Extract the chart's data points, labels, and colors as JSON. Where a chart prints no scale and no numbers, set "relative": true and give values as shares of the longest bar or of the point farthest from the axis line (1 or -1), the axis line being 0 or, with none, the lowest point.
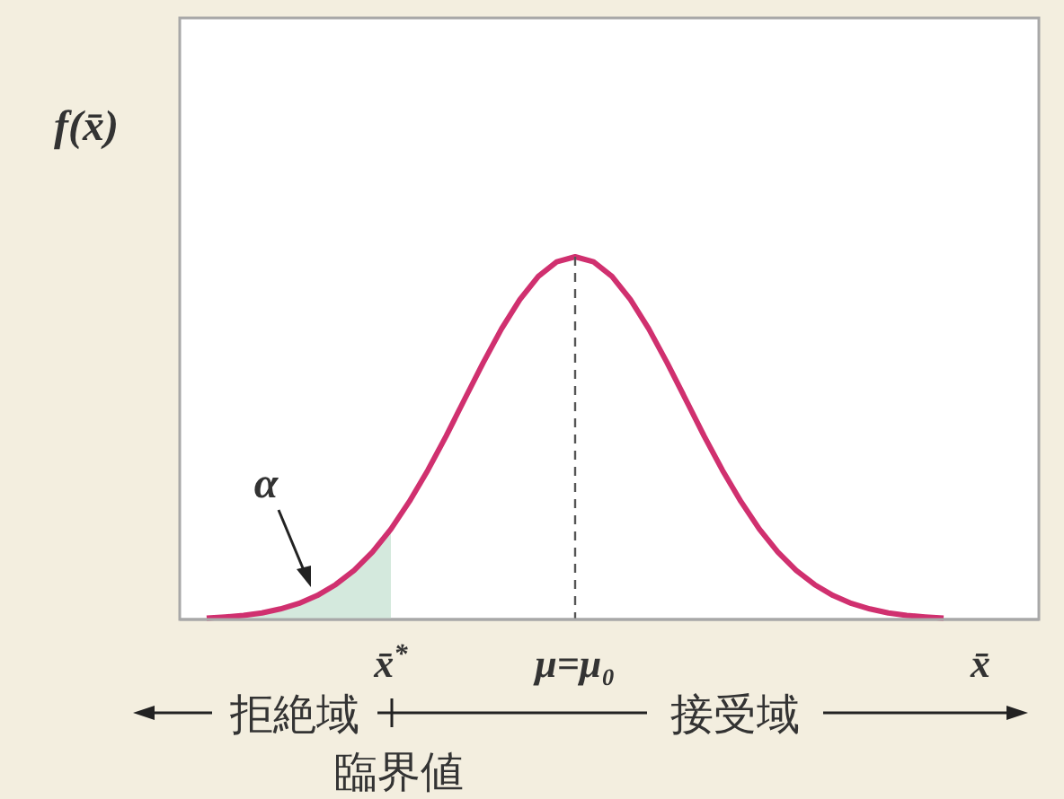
{
  "chart_data": {
    "type": "line",
    "relative": true,
    "ylabel": "f(x̄)",
    "categories": [
      null,
      null,
      null,
      null,
      null,
      null,
      null,
      null,
      null,
      null,
      "x̄$^{*}$",
      null,
      null,
      null,
      null,
      null,
      null,
      null,
      null,
      null,
      "μ=μ₀",
      null,
      null,
      null,
      null,
      null,
      null,
      null,
      null,
      null,
      null,
      null,
      null,
      null,
      null,
      null,
      null,
      null,
      null,
      null,
      null,
      null,
      "x̄"
    ],
    "series": [
      {
        "type": "area",
        "color": "#d4e9dd",
        "values": [
          0.004,
          0.007,
          0.011,
          0.018,
          0.029,
          0.044,
          0.066,
          0.096,
          0.135,
          0.186,
          0.249,
          null,
          null,
          null,
          null,
          null,
          null,
          null,
          null,
          null,
          null,
          null,
          null,
          null,
          null,
          null,
          null,
          null,
          null,
          null,
          null,
          null,
          null,
          null,
          null,
          null,
          null,
          null,
          null,
          null,
          null,
          null,
          null
        ]
      },
      {
        "type": "line",
        "color": "#d0306f",
        "values": [
          0.004,
          0.007,
          0.011,
          0.018,
          0.029,
          0.044,
          0.066,
          0.096,
          0.135,
          0.186,
          0.249,
          0.325,
          0.411,
          0.506,
          0.607,
          0.707,
          0.801,
          0.882,
          0.946,
          0.986,
          1,
          0.986,
          0.946,
          0.882,
          0.801,
          0.707,
          0.607,
          0.506,
          0.411,
          0.325,
          0.249,
          0.186,
          0.135,
          0.096,
          0.066,
          0.044,
          0.029,
          0.018,
          0.011,
          0.007,
          0.004,
          null,
          null
        ]
      }
    ],
    "ref_lines": [
      {
        "axis": "x",
        "value": "μ=μ₀",
        "color": "#555555",
        "line_style": "dashed"
      }
    ],
    "annotations": [
      "α",
      "拒絶域",
      "接受域",
      "臨界値"
    ],
    "line_style": "solid",
    "marker": "none",
    "grid": false
  }
}
